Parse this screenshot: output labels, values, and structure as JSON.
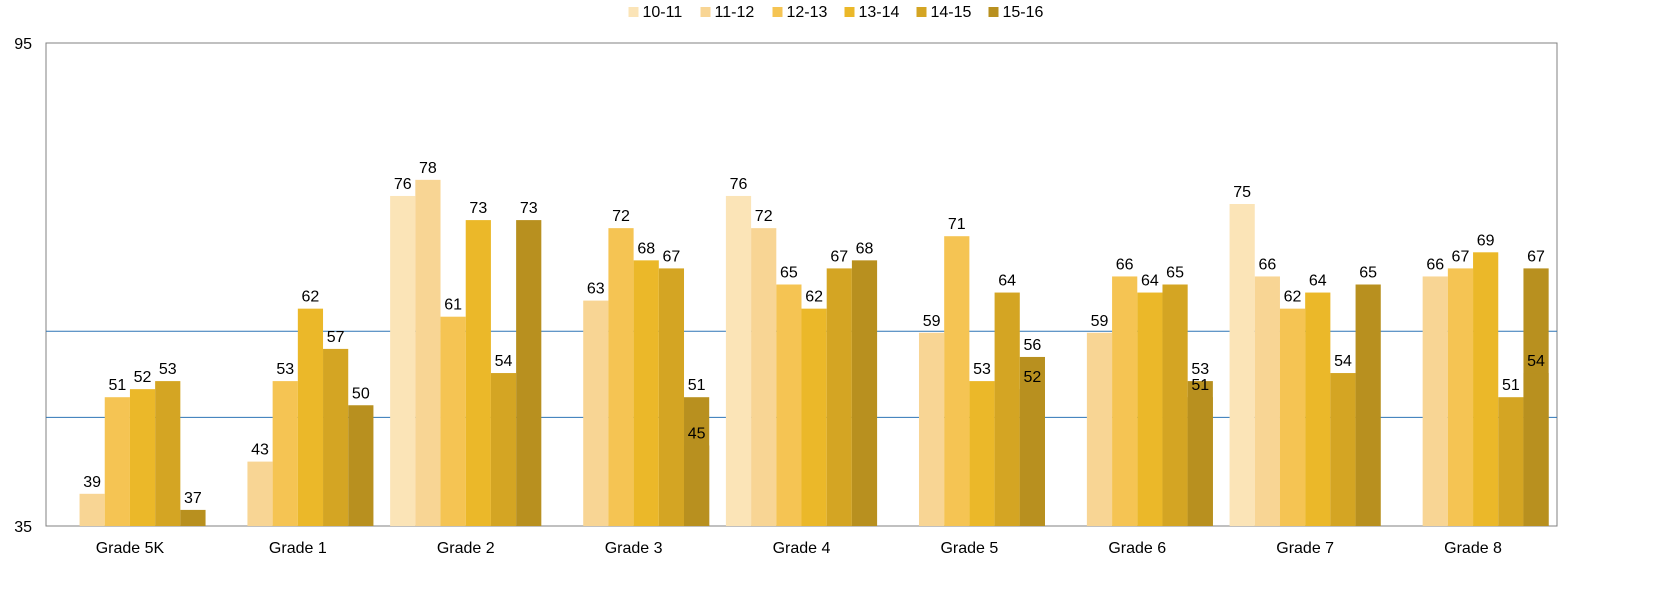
{
  "chart_data": {
    "type": "bar",
    "title": "",
    "xlabel": "",
    "ylabel": "",
    "ylim": [
      35,
      95
    ],
    "yticks": [
      35,
      95
    ],
    "y_tick_labels": [
      "35",
      "95"
    ],
    "grid": false,
    "legend_position": "top-center",
    "categories": [
      "Grade 5K",
      "Grade 1",
      "Grade 2",
      "Grade 3",
      "Grade 4",
      "Grade 5",
      "Grade 6",
      "Grade 7",
      "Grade 8"
    ],
    "series": [
      {
        "name": "10-11",
        "color": "#fbe4b7",
        "values": [
          null,
          null,
          76,
          null,
          76,
          null,
          null,
          75,
          null
        ],
        "labels": [
          "",
          "",
          "76",
          "",
          "76",
          "",
          "",
          "75",
          ""
        ]
      },
      {
        "name": "11-12",
        "color": "#f8d594",
        "values": [
          39,
          43,
          78,
          63,
          72,
          59,
          59,
          66,
          66
        ],
        "labels": [
          "39",
          "43",
          "78",
          "63",
          "72",
          "59",
          "59",
          "66",
          "66"
        ]
      },
      {
        "name": "12-13",
        "color": "#f5c453",
        "values": [
          51,
          53,
          61,
          72,
          65,
          71,
          66,
          62,
          67
        ],
        "labels": [
          "51",
          "53",
          "61",
          "72",
          "65",
          "71",
          "66",
          "62",
          "67"
        ]
      },
      {
        "name": "13-14",
        "color": "#ebb829",
        "values": [
          52,
          62,
          73,
          68,
          62,
          53,
          64,
          64,
          69
        ],
        "labels": [
          "52",
          "62",
          "73",
          "68",
          "62",
          "53",
          "64",
          "64",
          "69"
        ]
      },
      {
        "name": "14-15",
        "color": "#d4a523",
        "values": [
          53,
          57,
          54,
          67,
          67,
          64,
          65,
          54,
          51
        ],
        "labels": [
          "53",
          "57",
          "54",
          "67",
          "67",
          "64",
          "65",
          "54",
          "51"
        ]
      },
      {
        "name": "15-16",
        "color": "#b8901f",
        "values": [
          37,
          50,
          73,
          45,
          68,
          56,
          51,
          65,
          67
        ],
        "labels": [
          "37",
          "50",
          "73",
          "45",
          "68",
          "56",
          "51",
          "65",
          "67"
        ]
      },
      {
        "name": "",
        "color": "#b8901f",
        "values": [
          null,
          null,
          null,
          51,
          null,
          52,
          53,
          null,
          54
        ],
        "labels": [
          "",
          "",
          "",
          "51",
          "",
          "52",
          "53",
          "",
          "54"
        ]
      }
    ],
    "reference_lines": [
      {
        "value": 59.2,
        "color": "#2e75b6"
      },
      {
        "value": 48.5,
        "color": "#2e75b6"
      }
    ],
    "axis_color": "#808080",
    "label_color": "#000000"
  }
}
